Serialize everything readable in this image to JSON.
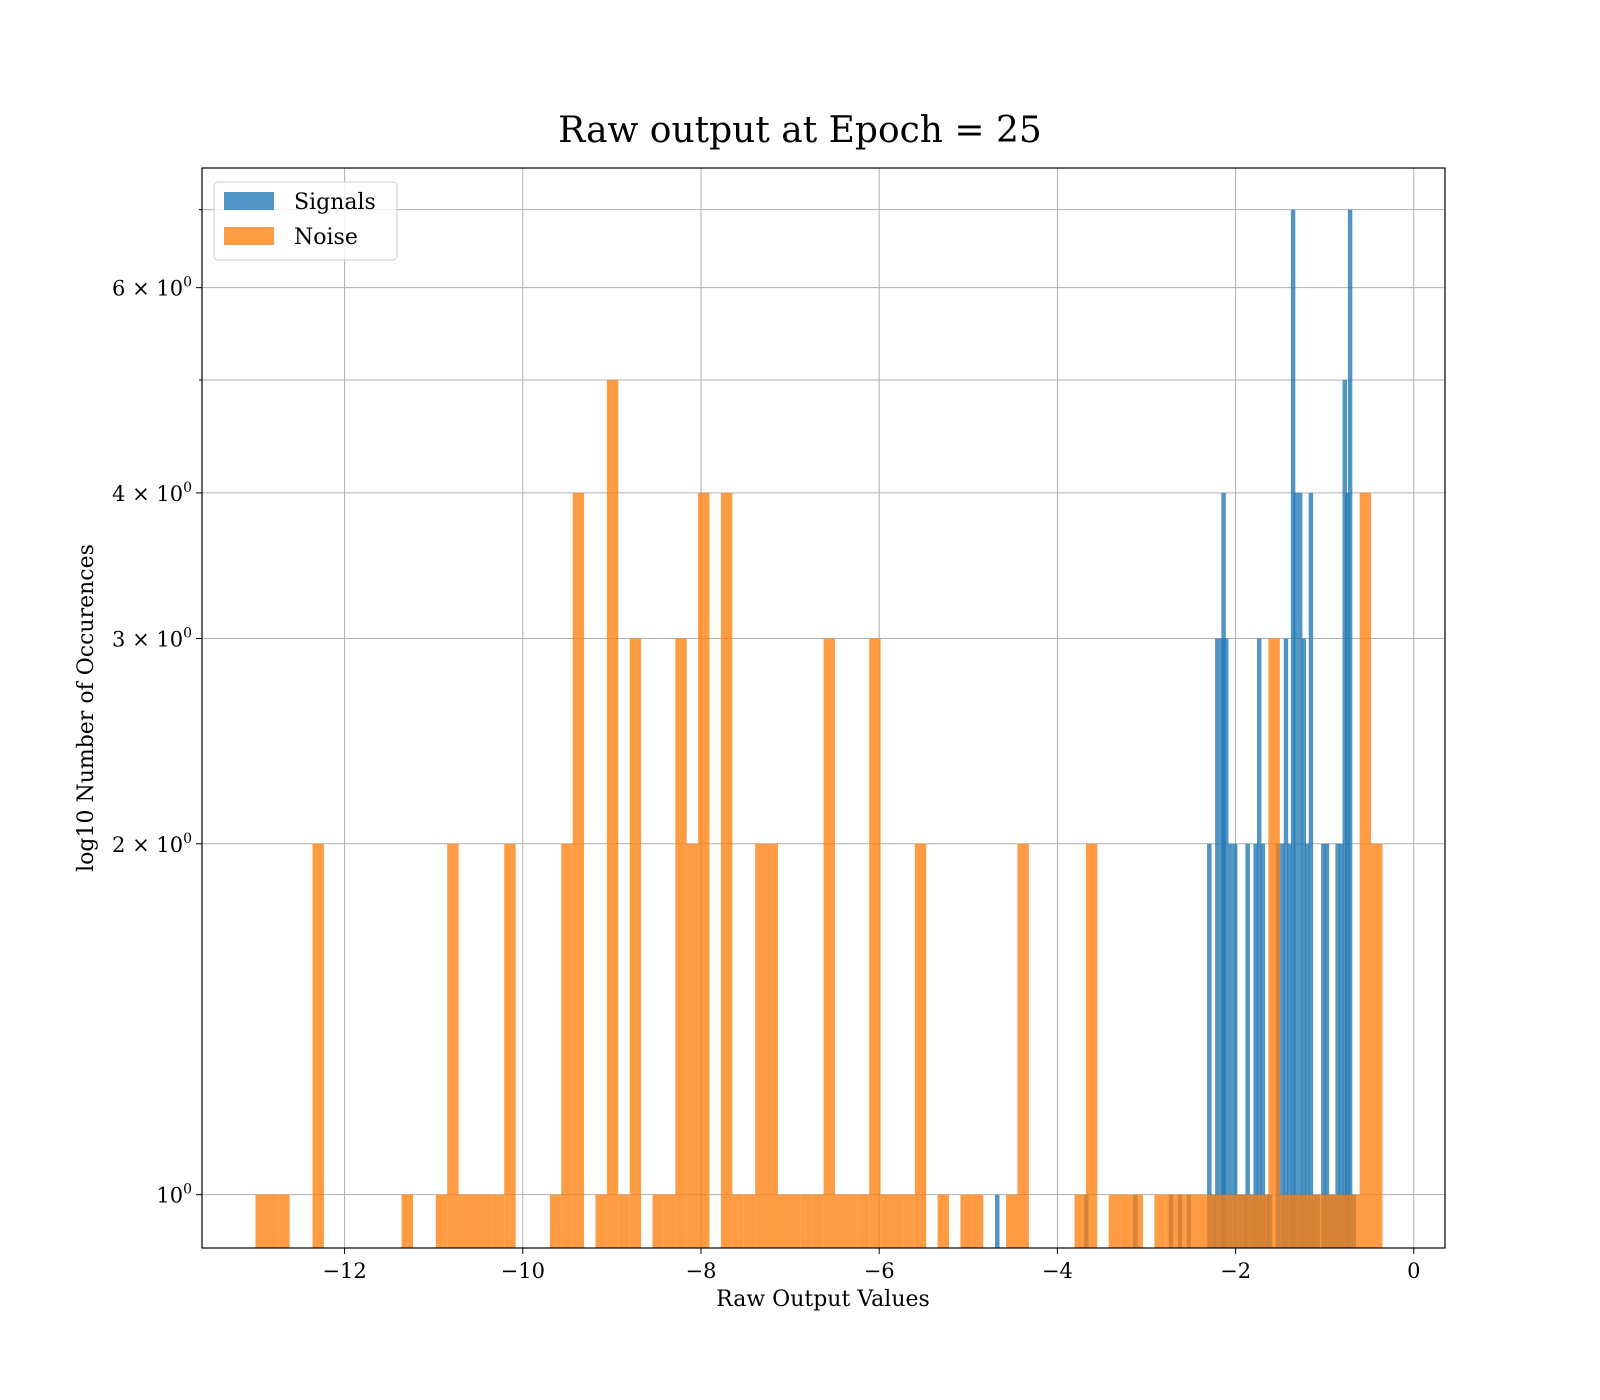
{
  "chart_data": {
    "type": "bar",
    "title": "Raw output at Epoch = 25",
    "xlabel": "Raw Output Values",
    "ylabel": "log10 Number of Occurences",
    "xlim": [
      -13.6,
      0.35
    ],
    "ylim": [
      0.9,
      7.6
    ],
    "yscale": "log",
    "grid": true,
    "legend": "top-left",
    "x_ticks": [
      {
        "value": -12,
        "label": "−12"
      },
      {
        "value": -10,
        "label": "−10"
      },
      {
        "value": -8,
        "label": "−8"
      },
      {
        "value": -6,
        "label": "−6"
      },
      {
        "value": -4,
        "label": "−4"
      },
      {
        "value": -2,
        "label": "−2"
      },
      {
        "value": 0,
        "label": "0"
      }
    ],
    "y_ticks": [
      {
        "value": 1,
        "base": "10",
        "exp": "0"
      },
      {
        "value": 2,
        "base": "2 × 10",
        "exp": "0"
      },
      {
        "value": 3,
        "base": "3 × 10",
        "exp": "0"
      },
      {
        "value": 4,
        "base": "4 × 10",
        "exp": "0"
      },
      {
        "value": 6,
        "base": "6 × 10",
        "exp": "0"
      }
    ],
    "y_minor_grid": [
      5,
      7
    ],
    "series": [
      {
        "name": "Signals",
        "color": "#1f77b4",
        "bin_width": 0.05,
        "bins": [
          [
            -4.7,
            1
          ],
          [
            -3.7,
            1
          ],
          [
            -3.15,
            1
          ],
          [
            -2.75,
            1
          ],
          [
            -2.65,
            1
          ],
          [
            -2.55,
            1
          ],
          [
            -2.32,
            2
          ],
          [
            -2.27,
            1
          ],
          [
            -2.23,
            3
          ],
          [
            -2.18,
            3
          ],
          [
            -2.16,
            4
          ],
          [
            -2.13,
            3
          ],
          [
            -2.08,
            2
          ],
          [
            -2.03,
            2
          ],
          [
            -1.98,
            1
          ],
          [
            -1.93,
            1
          ],
          [
            -1.89,
            2
          ],
          [
            -1.84,
            1
          ],
          [
            -1.8,
            2
          ],
          [
            -1.76,
            3
          ],
          [
            -1.72,
            2
          ],
          [
            -1.68,
            1
          ],
          [
            -1.64,
            1
          ],
          [
            -1.55,
            2
          ],
          [
            -1.5,
            2
          ],
          [
            -1.46,
            3
          ],
          [
            -1.42,
            2
          ],
          [
            -1.38,
            7
          ],
          [
            -1.35,
            4
          ],
          [
            -1.3,
            4
          ],
          [
            -1.26,
            3
          ],
          [
            -1.22,
            2
          ],
          [
            -1.18,
            4
          ],
          [
            -1.14,
            1
          ],
          [
            -1.1,
            1
          ],
          [
            -1.04,
            2
          ],
          [
            -1.0,
            2
          ],
          [
            -0.96,
            1
          ],
          [
            -0.92,
            1
          ],
          [
            -0.88,
            2
          ],
          [
            -0.84,
            2
          ],
          [
            -0.8,
            5
          ],
          [
            -0.77,
            4
          ],
          [
            -0.74,
            7
          ],
          [
            -0.7,
            1
          ]
        ]
      },
      {
        "name": "Noise",
        "color": "#ff7f0e",
        "bin_width": 0.128,
        "bins": [
          [
            -13.0,
            1
          ],
          [
            -12.872,
            1
          ],
          [
            -12.744,
            1
          ],
          [
            -12.36,
            2
          ],
          [
            -11.36,
            1
          ],
          [
            -10.976,
            1
          ],
          [
            -10.848,
            2
          ],
          [
            -10.72,
            1
          ],
          [
            -10.592,
            1
          ],
          [
            -10.464,
            1
          ],
          [
            -10.336,
            1
          ],
          [
            -10.208,
            2
          ],
          [
            -9.696,
            1
          ],
          [
            -9.568,
            2
          ],
          [
            -9.44,
            4
          ],
          [
            -9.184,
            1
          ],
          [
            -9.056,
            5
          ],
          [
            -8.928,
            1
          ],
          [
            -8.8,
            3
          ],
          [
            -8.544,
            1
          ],
          [
            -8.416,
            1
          ],
          [
            -8.288,
            3
          ],
          [
            -8.16,
            2
          ],
          [
            -8.032,
            4
          ],
          [
            -7.776,
            4
          ],
          [
            -7.648,
            1
          ],
          [
            -7.52,
            1
          ],
          [
            -7.392,
            2
          ],
          [
            -7.264,
            2
          ],
          [
            -7.136,
            1
          ],
          [
            -7.008,
            1
          ],
          [
            -6.88,
            1
          ],
          [
            -6.752,
            1
          ],
          [
            -6.624,
            3
          ],
          [
            -6.496,
            1
          ],
          [
            -6.368,
            1
          ],
          [
            -6.24,
            1
          ],
          [
            -6.112,
            3
          ],
          [
            -5.984,
            1
          ],
          [
            -5.856,
            1
          ],
          [
            -5.728,
            1
          ],
          [
            -5.6,
            2
          ],
          [
            -5.344,
            1
          ],
          [
            -5.088,
            1
          ],
          [
            -4.96,
            1
          ],
          [
            -4.576,
            1
          ],
          [
            -4.448,
            2
          ],
          [
            -3.808,
            1
          ],
          [
            -3.68,
            2
          ],
          [
            -3.424,
            1
          ],
          [
            -3.296,
            1
          ],
          [
            -3.168,
            1
          ],
          [
            -2.912,
            1
          ],
          [
            -2.784,
            1
          ],
          [
            -2.656,
            1
          ],
          [
            -2.528,
            1
          ],
          [
            -2.4,
            1
          ],
          [
            -2.272,
            1
          ],
          [
            -2.144,
            1
          ],
          [
            -2.016,
            1
          ],
          [
            -1.888,
            1
          ],
          [
            -1.76,
            1
          ],
          [
            -1.632,
            3
          ],
          [
            -1.504,
            1
          ],
          [
            -1.376,
            1
          ],
          [
            -1.248,
            1
          ],
          [
            -1.12,
            1
          ],
          [
            -0.992,
            1
          ],
          [
            -0.864,
            1
          ],
          [
            -0.736,
            1
          ],
          [
            -0.608,
            4
          ],
          [
            -0.48,
            2
          ]
        ]
      }
    ]
  }
}
